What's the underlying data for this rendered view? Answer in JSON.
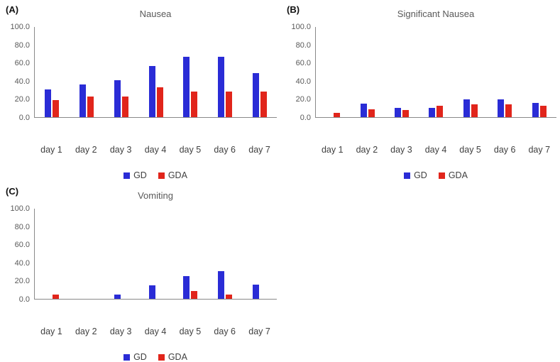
{
  "colors": {
    "gd": "#2a2cd6",
    "gda": "#e1251b",
    "axis": "#898989"
  },
  "chart_data": [
    {
      "panel_label": "(A)",
      "title": "Nausea",
      "type": "bar",
      "categories": [
        "day 1",
        "day 2",
        "day 3",
        "day 4",
        "day 5",
        "day 6",
        "day 7"
      ],
      "series": [
        {
          "name": "GD",
          "color": "#2a2cd6",
          "values": [
            31,
            36,
            41,
            57,
            67,
            67,
            49
          ]
        },
        {
          "name": "GDA",
          "color": "#e1251b",
          "values": [
            19,
            23,
            23,
            33,
            28,
            28,
            28
          ]
        }
      ],
      "ylim": [
        0,
        100
      ],
      "ytick_step": 20,
      "ytick_decimals": 1,
      "grid": false,
      "legend_position": "bottom",
      "xlabel": "",
      "ylabel": ""
    },
    {
      "panel_label": "(B)",
      "title": "Significant Nausea",
      "type": "bar",
      "categories": [
        "day 1",
        "day 2",
        "day 3",
        "day 4",
        "day 5",
        "day 6",
        "day 7"
      ],
      "series": [
        {
          "name": "GD",
          "color": "#2a2cd6",
          "values": [
            0,
            15,
            10,
            10,
            20,
            20,
            16
          ]
        },
        {
          "name": "GDA",
          "color": "#e1251b",
          "values": [
            5,
            9,
            8,
            13,
            14,
            14,
            13
          ]
        }
      ],
      "ylim": [
        0,
        100
      ],
      "ytick_step": 20,
      "ytick_decimals": 1,
      "grid": false,
      "legend_position": "bottom",
      "xlabel": "",
      "ylabel": ""
    },
    {
      "panel_label": "(C)",
      "title": "Vomiting",
      "type": "bar",
      "categories": [
        "day 1",
        "day 2",
        "day 3",
        "day 4",
        "day 5",
        "day 6",
        "day 7"
      ],
      "series": [
        {
          "name": "GD",
          "color": "#2a2cd6",
          "values": [
            0,
            0,
            5,
            15,
            25,
            31,
            16
          ]
        },
        {
          "name": "GDA",
          "color": "#e1251b",
          "values": [
            5,
            0,
            0,
            0,
            9,
            5,
            0
          ]
        }
      ],
      "ylim": [
        0,
        100
      ],
      "ytick_step": 20,
      "ytick_decimals": 1,
      "grid": false,
      "legend_position": "bottom",
      "xlabel": "",
      "ylabel": ""
    }
  ]
}
